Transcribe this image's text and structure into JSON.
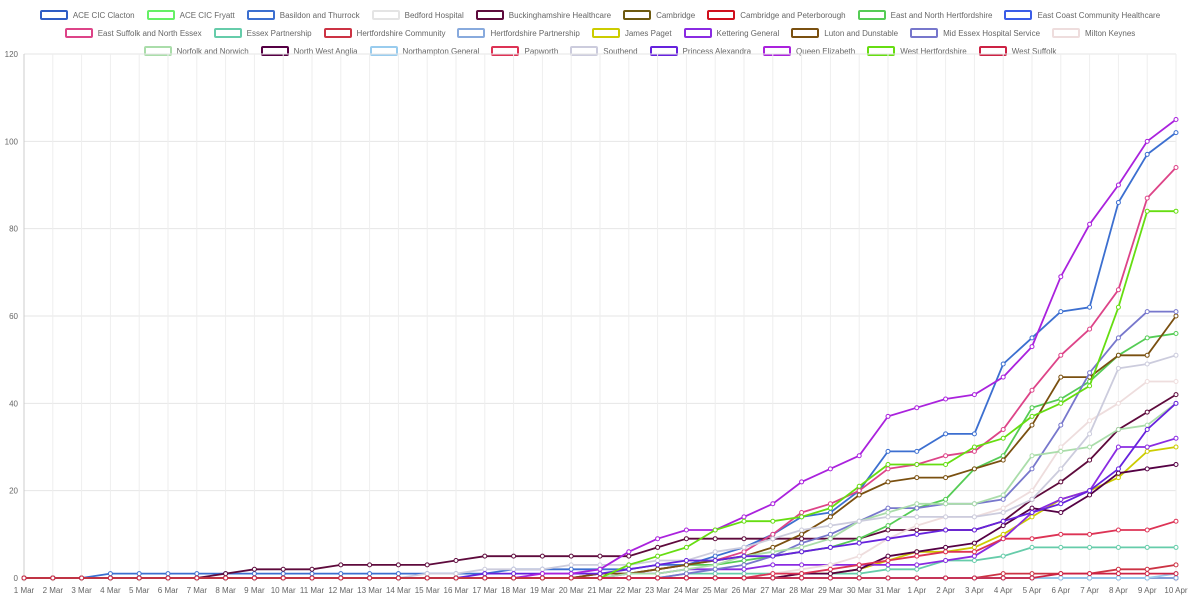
{
  "chart_data": {
    "type": "line",
    "x": [
      "1 Mar",
      "2 Mar",
      "3 Mar",
      "4 Mar",
      "5 Mar",
      "6 Mar",
      "7 Mar",
      "8 Mar",
      "9 Mar",
      "10 Mar",
      "11 Mar",
      "12 Mar",
      "13 Mar",
      "14 Mar",
      "15 Mar",
      "16 Mar",
      "17 Mar",
      "18 Mar",
      "19 Mar",
      "20 Mar",
      "21 Mar",
      "22 Mar",
      "23 Mar",
      "24 Mar",
      "25 Mar",
      "26 Mar",
      "27 Mar",
      "28 Mar",
      "29 Mar",
      "30 Mar",
      "31 Mar",
      "1 Apr",
      "2 Apr",
      "3 Apr",
      "4 Apr",
      "5 Apr",
      "6 Apr",
      "7 Apr",
      "8 Apr",
      "9 Apr",
      "10 Apr"
    ],
    "yticks": [
      "0",
      "20",
      "40",
      "60",
      "80",
      "100",
      "120"
    ],
    "ylim": [
      0,
      120
    ],
    "grid": true,
    "legend_position": "top",
    "series": [
      {
        "name": "ACE CIC Clacton",
        "color": "#2f5dc5",
        "values": [
          0,
          0,
          0,
          0,
          0,
          0,
          0,
          0,
          0,
          0,
          0,
          0,
          0,
          0,
          0,
          0,
          0,
          0,
          0,
          0,
          0,
          0,
          0,
          0,
          0,
          0,
          0,
          0,
          0,
          0,
          0,
          0,
          0,
          0,
          0,
          0,
          0,
          0,
          0,
          0,
          0
        ]
      },
      {
        "name": "ACE CIC Fryatt",
        "color": "#66f066",
        "values": [
          0,
          0,
          0,
          0,
          0,
          0,
          0,
          0,
          0,
          0,
          0,
          0,
          0,
          0,
          0,
          0,
          0,
          0,
          0,
          0,
          0,
          0,
          0,
          0,
          0,
          0,
          0,
          0,
          0,
          0,
          0,
          0,
          0,
          0,
          0,
          0,
          0,
          0,
          0,
          0,
          0
        ]
      },
      {
        "name": "Basildon and Thurrock",
        "color": "#3c6fd0",
        "values": [
          0,
          0,
          0,
          1,
          1,
          1,
          1,
          1,
          1,
          1,
          1,
          1,
          1,
          1,
          1,
          1,
          1,
          2,
          2,
          2,
          2,
          2,
          3,
          3,
          5,
          7,
          10,
          14,
          15,
          20,
          29,
          29,
          33,
          33,
          49,
          55,
          61,
          62,
          86,
          97,
          102
        ]
      },
      {
        "name": "Bedford Hospital",
        "color": "#e4e4e4",
        "values": [
          0,
          0,
          0,
          0,
          0,
          0,
          0,
          0,
          0,
          0,
          0,
          0,
          0,
          0,
          0,
          0,
          0,
          0,
          0,
          0,
          0,
          0,
          0,
          0,
          0,
          0,
          0,
          0,
          0,
          0,
          0,
          0,
          0,
          0,
          0,
          0,
          0,
          0,
          0,
          0,
          0
        ]
      },
      {
        "name": "Buckinghamshire Healthcare",
        "color": "#5e0a3c",
        "values": [
          0,
          0,
          0,
          0,
          0,
          0,
          0,
          1,
          2,
          2,
          2,
          3,
          3,
          3,
          3,
          4,
          5,
          5,
          5,
          5,
          5,
          5,
          7,
          9,
          9,
          9,
          9,
          9,
          9,
          9,
          11,
          11,
          11,
          11,
          13,
          18,
          22,
          27,
          34,
          38,
          42
        ]
      },
      {
        "name": "Cambridge",
        "color": "#6e5a10",
        "values": [
          0,
          0,
          0,
          0,
          0,
          0,
          0,
          0,
          0,
          0,
          0,
          0,
          0,
          0,
          0,
          0,
          0,
          0,
          0,
          0,
          0,
          0,
          0,
          0,
          0,
          0,
          0,
          0,
          0,
          0,
          0,
          0,
          0,
          0,
          0,
          0,
          0,
          0,
          0,
          0,
          0
        ]
      },
      {
        "name": "Cambridge and Peterborough",
        "color": "#d0101e",
        "values": [
          0,
          0,
          0,
          0,
          0,
          0,
          0,
          0,
          0,
          0,
          0,
          0,
          0,
          0,
          0,
          0,
          0,
          0,
          0,
          0,
          0,
          0,
          0,
          0,
          0,
          0,
          0,
          0,
          0,
          0,
          0,
          0,
          0,
          0,
          0,
          0,
          0,
          0,
          0,
          0,
          0
        ]
      },
      {
        "name": "East and North Hertfordshire",
        "color": "#55cc55",
        "values": [
          0,
          0,
          0,
          0,
          0,
          0,
          0,
          0,
          0,
          0,
          0,
          0,
          0,
          0,
          0,
          0,
          0,
          0,
          0,
          0,
          1,
          1,
          2,
          3,
          3,
          4,
          5,
          6,
          7,
          9,
          12,
          16,
          18,
          25,
          28,
          39,
          41,
          45,
          51,
          55,
          56
        ]
      },
      {
        "name": "East Coast Community Healthcare",
        "color": "#3b5de8",
        "values": [
          0,
          0,
          0,
          0,
          0,
          0,
          0,
          0,
          0,
          0,
          0,
          0,
          0,
          0,
          0,
          0,
          0,
          0,
          0,
          0,
          0,
          0,
          0,
          0,
          0,
          0,
          0,
          0,
          0,
          0,
          0,
          0,
          0,
          0,
          0,
          0,
          0,
          0,
          0,
          0,
          0
        ]
      },
      {
        "name": "East Suffolk and North Essex",
        "color": "#dd4488",
        "values": [
          0,
          0,
          0,
          0,
          0,
          0,
          0,
          0,
          0,
          0,
          0,
          0,
          0,
          0,
          0,
          0,
          0,
          0,
          0,
          0,
          1,
          1,
          2,
          3,
          4,
          6,
          10,
          15,
          17,
          20,
          25,
          26,
          28,
          29,
          34,
          43,
          51,
          57,
          66,
          87,
          94
        ]
      },
      {
        "name": "Essex Partnership",
        "color": "#66ccaa",
        "values": [
          0,
          0,
          0,
          0,
          0,
          0,
          0,
          0,
          0,
          0,
          0,
          0,
          0,
          0,
          0,
          0,
          0,
          0,
          0,
          0,
          0,
          0,
          0,
          1,
          1,
          1,
          1,
          1,
          1,
          1,
          2,
          2,
          4,
          4,
          5,
          7,
          7,
          7,
          7,
          7,
          7
        ]
      },
      {
        "name": "Hertfordshire Community",
        "color": "#cc3344",
        "values": [
          0,
          0,
          0,
          0,
          0,
          0,
          0,
          0,
          0,
          0,
          0,
          0,
          0,
          0,
          0,
          0,
          0,
          0,
          0,
          0,
          0,
          0,
          0,
          0,
          0,
          0,
          0,
          0,
          0,
          0,
          0,
          0,
          0,
          0,
          1,
          1,
          1,
          1,
          2,
          2,
          3
        ]
      },
      {
        "name": "Hertfordshire Partnership",
        "color": "#88aadd",
        "values": [
          0,
          0,
          0,
          0,
          0,
          0,
          0,
          0,
          0,
          0,
          0,
          0,
          0,
          0,
          0,
          0,
          0,
          0,
          0,
          0,
          0,
          0,
          0,
          0,
          0,
          0,
          0,
          0,
          0,
          0,
          0,
          0,
          0,
          0,
          0,
          0,
          0,
          0,
          0,
          0,
          0
        ]
      },
      {
        "name": "James Paget",
        "color": "#cccc00",
        "values": [
          0,
          0,
          0,
          0,
          0,
          0,
          0,
          0,
          0,
          0,
          0,
          0,
          0,
          0,
          0,
          0,
          0,
          0,
          0,
          0,
          0,
          0,
          0,
          0,
          0,
          0,
          0,
          1,
          1,
          2,
          4,
          6,
          6,
          7,
          10,
          14,
          18,
          20,
          23,
          29,
          30
        ]
      },
      {
        "name": "Kettering General",
        "color": "#8a2be2",
        "values": [
          0,
          0,
          0,
          0,
          0,
          0,
          0,
          0,
          0,
          0,
          0,
          0,
          0,
          0,
          0,
          0,
          0,
          0,
          0,
          0,
          0,
          1,
          1,
          2,
          2,
          2,
          3,
          3,
          3,
          3,
          3,
          3,
          4,
          5,
          9,
          15,
          18,
          20,
          30,
          30,
          32
        ]
      },
      {
        "name": "Luton and Dunstable",
        "color": "#7a5010",
        "values": [
          0,
          0,
          0,
          0,
          0,
          0,
          0,
          0,
          0,
          0,
          0,
          0,
          0,
          0,
          0,
          0,
          0,
          0,
          0,
          0,
          1,
          1,
          2,
          3,
          4,
          5,
          7,
          10,
          14,
          19,
          22,
          23,
          23,
          25,
          27,
          35,
          46,
          46,
          51,
          51,
          60
        ]
      },
      {
        "name": "Mid Essex Hospital Service",
        "color": "#7777cc",
        "values": [
          0,
          0,
          0,
          0,
          0,
          0,
          0,
          0,
          0,
          0,
          0,
          0,
          0,
          0,
          0,
          0,
          0,
          0,
          0,
          0,
          0,
          0,
          0,
          1,
          2,
          3,
          5,
          8,
          10,
          13,
          16,
          16,
          17,
          17,
          18,
          25,
          35,
          47,
          55,
          61,
          61
        ]
      },
      {
        "name": "Milton Keynes",
        "color": "#eedddd",
        "values": [
          0,
          0,
          0,
          0,
          0,
          0,
          0,
          0,
          0,
          0,
          0,
          0,
          0,
          0,
          0,
          0,
          0,
          0,
          0,
          0,
          0,
          0,
          0,
          0,
          0,
          0,
          1,
          2,
          3,
          5,
          9,
          12,
          14,
          14,
          16,
          20,
          30,
          36,
          40,
          45,
          45
        ]
      },
      {
        "name": "Norfolk and Norwich",
        "color": "#aaddaa",
        "values": [
          0,
          0,
          0,
          0,
          0,
          0,
          0,
          0,
          0,
          0,
          0,
          0,
          0,
          0,
          0,
          0,
          0,
          0,
          0,
          0,
          0,
          1,
          1,
          2,
          3,
          5,
          6,
          7,
          9,
          13,
          15,
          17,
          17,
          17,
          19,
          28,
          29,
          30,
          34,
          35,
          40
        ]
      },
      {
        "name": "North West Anglia",
        "color": "#550044",
        "values": [
          0,
          0,
          0,
          0,
          0,
          0,
          0,
          0,
          0,
          0,
          0,
          0,
          0,
          0,
          0,
          0,
          0,
          0,
          0,
          0,
          0,
          0,
          0,
          0,
          0,
          0,
          0,
          1,
          1,
          2,
          5,
          6,
          7,
          8,
          12,
          16,
          15,
          19,
          24,
          25,
          26
        ]
      },
      {
        "name": "Northampton General",
        "color": "#99ccee",
        "values": [
          0,
          0,
          0,
          0,
          0,
          0,
          0,
          0,
          0,
          0,
          0,
          0,
          0,
          0,
          0,
          0,
          0,
          0,
          0,
          0,
          0,
          0,
          0,
          0,
          0,
          0,
          0,
          0,
          0,
          0,
          0,
          0,
          0,
          0,
          0,
          0,
          0,
          0,
          0,
          0,
          1
        ]
      },
      {
        "name": "Papworth",
        "color": "#dd3355",
        "values": [
          0,
          0,
          0,
          0,
          0,
          0,
          0,
          0,
          0,
          0,
          0,
          0,
          0,
          0,
          0,
          0,
          0,
          0,
          0,
          0,
          0,
          0,
          0,
          0,
          0,
          0,
          1,
          1,
          2,
          3,
          4,
          5,
          6,
          6,
          9,
          9,
          10,
          10,
          11,
          11,
          13
        ]
      },
      {
        "name": "Southend",
        "color": "#ccccdd",
        "values": [
          0,
          0,
          0,
          0,
          0,
          0,
          0,
          0,
          0,
          0,
          0,
          0,
          0,
          0,
          1,
          1,
          2,
          2,
          2,
          3,
          3,
          3,
          4,
          4,
          6,
          7,
          9,
          11,
          12,
          13,
          14,
          14,
          14,
          14,
          15,
          18,
          25,
          33,
          48,
          49,
          51
        ]
      },
      {
        "name": "Princess Alexandra",
        "color": "#6622dd",
        "values": [
          0,
          0,
          0,
          0,
          0,
          0,
          0,
          0,
          0,
          0,
          0,
          0,
          0,
          0,
          0,
          0,
          1,
          1,
          1,
          1,
          1,
          2,
          3,
          4,
          4,
          5,
          5,
          6,
          7,
          8,
          9,
          10,
          11,
          11,
          13,
          15,
          17,
          20,
          25,
          34,
          40
        ]
      },
      {
        "name": "Queen Elizabeth",
        "color": "#aa22dd",
        "values": [
          0,
          0,
          0,
          0,
          0,
          0,
          0,
          0,
          0,
          0,
          0,
          0,
          0,
          0,
          0,
          0,
          0,
          0,
          1,
          1,
          2,
          6,
          9,
          11,
          11,
          14,
          17,
          22,
          25,
          28,
          37,
          39,
          41,
          42,
          46,
          53,
          69,
          81,
          90,
          100,
          105
        ]
      },
      {
        "name": "West Hertfordshire",
        "color": "#66dd11",
        "values": [
          0,
          0,
          0,
          0,
          0,
          0,
          0,
          0,
          0,
          0,
          0,
          0,
          0,
          0,
          0,
          0,
          0,
          0,
          0,
          0,
          0,
          3,
          5,
          7,
          11,
          13,
          13,
          14,
          16,
          21,
          26,
          26,
          26,
          30,
          32,
          37,
          40,
          44,
          62,
          84,
          84
        ]
      },
      {
        "name": "West Suffolk",
        "color": "#cc2244",
        "values": [
          0,
          0,
          0,
          0,
          0,
          0,
          0,
          0,
          0,
          0,
          0,
          0,
          0,
          0,
          0,
          0,
          0,
          0,
          0,
          0,
          0,
          0,
          0,
          0,
          0,
          0,
          0,
          0,
          0,
          0,
          0,
          0,
          0,
          0,
          0,
          0,
          1,
          1,
          1,
          1,
          1
        ]
      }
    ]
  }
}
